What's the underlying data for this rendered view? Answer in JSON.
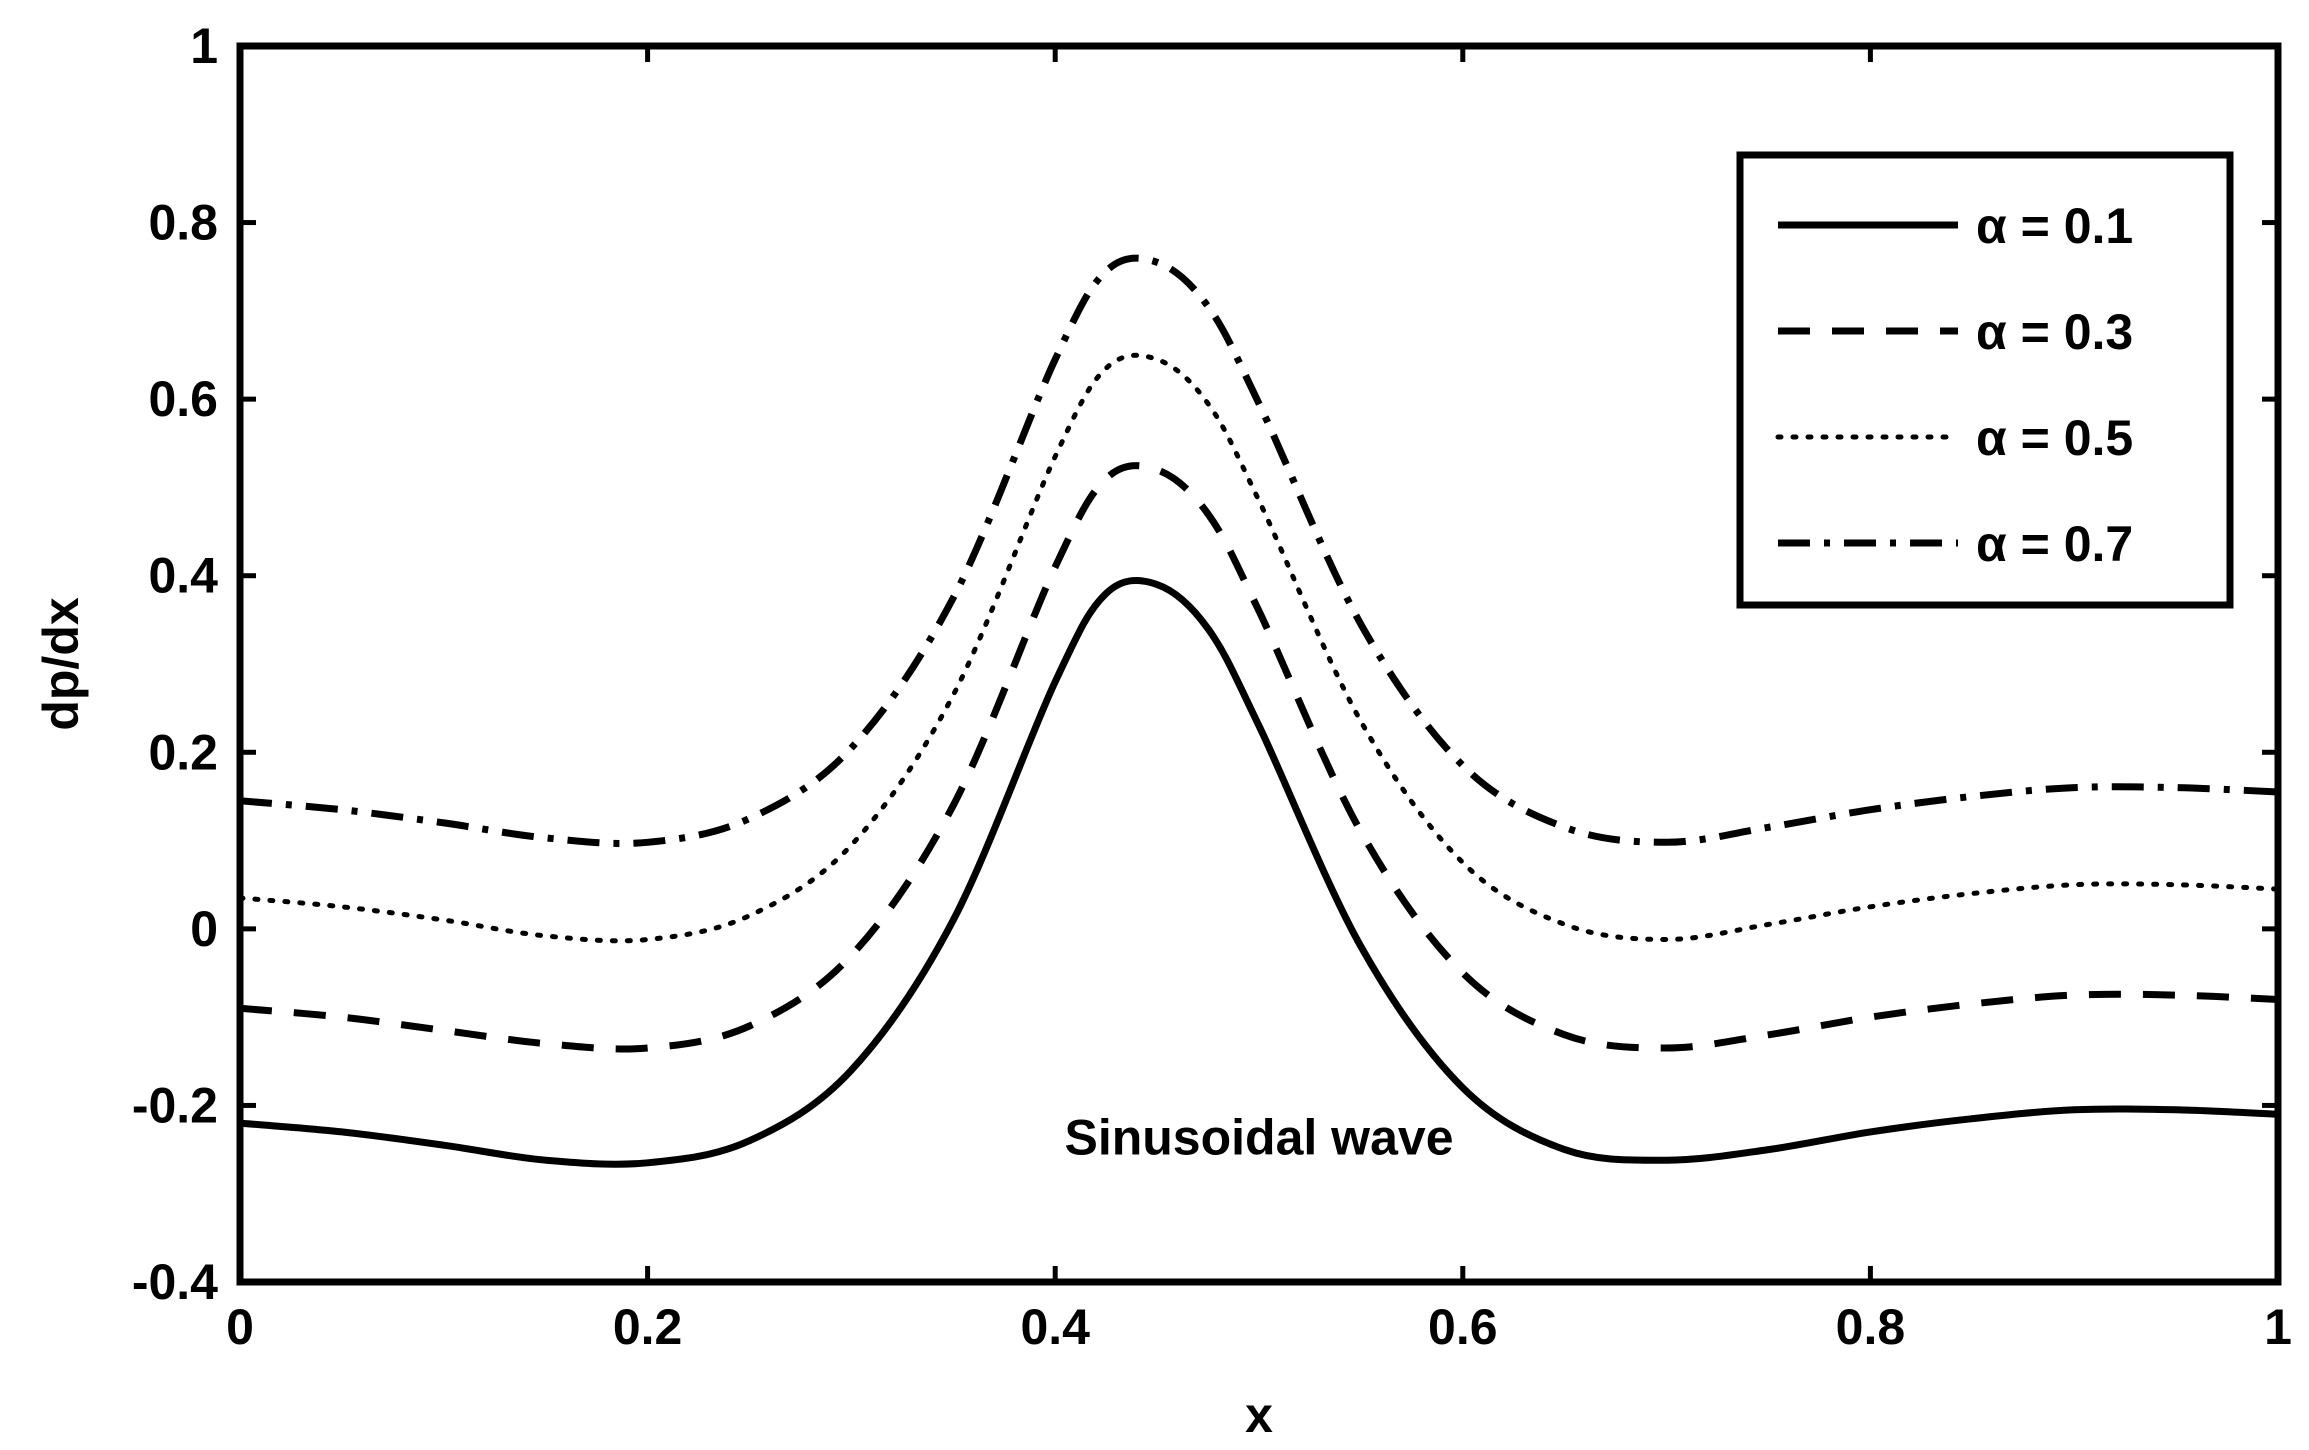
{
  "chart_data": {
    "type": "line",
    "title": "",
    "xlabel": "x",
    "ylabel": "dp/dx",
    "xlim": [
      0,
      1
    ],
    "ylim": [
      -0.4,
      1
    ],
    "grid": false,
    "legend_position": "top-right",
    "x_ticks": [
      "0",
      "0.2",
      "0.4",
      "0.6",
      "0.8",
      "1"
    ],
    "y_ticks": [
      "-0.4",
      "-0.2",
      "0",
      "0.2",
      "0.4",
      "0.6",
      "0.8",
      "1"
    ],
    "x": [
      0,
      0.05,
      0.1,
      0.15,
      0.2,
      0.25,
      0.3,
      0.35,
      0.4,
      0.425,
      0.45,
      0.475,
      0.5,
      0.55,
      0.6,
      0.65,
      0.7,
      0.75,
      0.8,
      0.85,
      0.9,
      0.95,
      1.0
    ],
    "series": [
      {
        "name": "α = 0.1",
        "style": "solid",
        "values": [
          -0.22,
          -0.23,
          -0.245,
          -0.262,
          -0.265,
          -0.24,
          -0.16,
          0.01,
          0.28,
          0.38,
          0.39,
          0.34,
          0.23,
          -0.02,
          -0.18,
          -0.25,
          -0.262,
          -0.25,
          -0.23,
          -0.215,
          -0.205,
          -0.205,
          -0.21
        ]
      },
      {
        "name": "α = 0.3",
        "style": "dashed",
        "values": [
          -0.09,
          -0.1,
          -0.115,
          -0.13,
          -0.135,
          -0.11,
          -0.03,
          0.14,
          0.41,
          0.51,
          0.52,
          0.47,
          0.36,
          0.11,
          -0.05,
          -0.12,
          -0.135,
          -0.12,
          -0.1,
          -0.085,
          -0.075,
          -0.075,
          -0.08
        ]
      },
      {
        "name": "α = 0.5",
        "style": "dotted",
        "values": [
          0.035,
          0.025,
          0.01,
          -0.008,
          -0.012,
          0.015,
          0.095,
          0.265,
          0.535,
          0.635,
          0.645,
          0.595,
          0.485,
          0.235,
          0.075,
          0.005,
          -0.012,
          0.005,
          0.025,
          0.04,
          0.05,
          0.05,
          0.045
        ]
      },
      {
        "name": "α = 0.7",
        "style": "dashdot",
        "values": [
          0.145,
          0.135,
          0.12,
          0.103,
          0.098,
          0.125,
          0.205,
          0.375,
          0.645,
          0.745,
          0.755,
          0.705,
          0.595,
          0.345,
          0.185,
          0.115,
          0.098,
          0.115,
          0.135,
          0.15,
          0.16,
          0.16,
          0.155
        ]
      }
    ],
    "annotations": [
      {
        "text": "Sinusoidal wave",
        "x": 0.5,
        "y": -0.235
      }
    ]
  }
}
